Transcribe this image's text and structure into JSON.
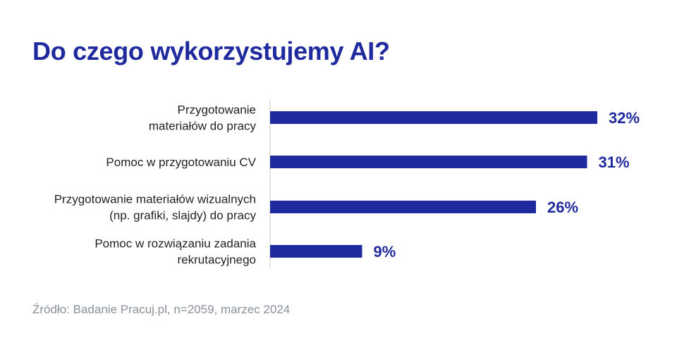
{
  "chart_data": {
    "type": "bar",
    "orientation": "horizontal",
    "title": "Do czego wykorzystujemy AI?",
    "categories": [
      [
        "Przygotowanie",
        "materiałów do pracy"
      ],
      [
        "Pomoc w przygotowaniu CV"
      ],
      [
        "Przygotowanie materiałów wizualnych",
        "(np. grafiki, slajdy) do pracy"
      ],
      [
        "Pomoc w rozwiązaniu zadania",
        "rekrutacyjnego"
      ]
    ],
    "values": [
      32,
      31,
      26,
      9
    ],
    "value_labels": [
      "32%",
      "31%",
      "26%",
      "9%"
    ],
    "unit": "%",
    "xlim": [
      0,
      35
    ],
    "grid": false,
    "bar_color": "#1f2a9e",
    "title_color": "#1f2a9e",
    "axis_line_color": "#c8c8c8"
  },
  "source": "Źródło: Badanie Pracuj.pl, n=2059, marzec 2024"
}
